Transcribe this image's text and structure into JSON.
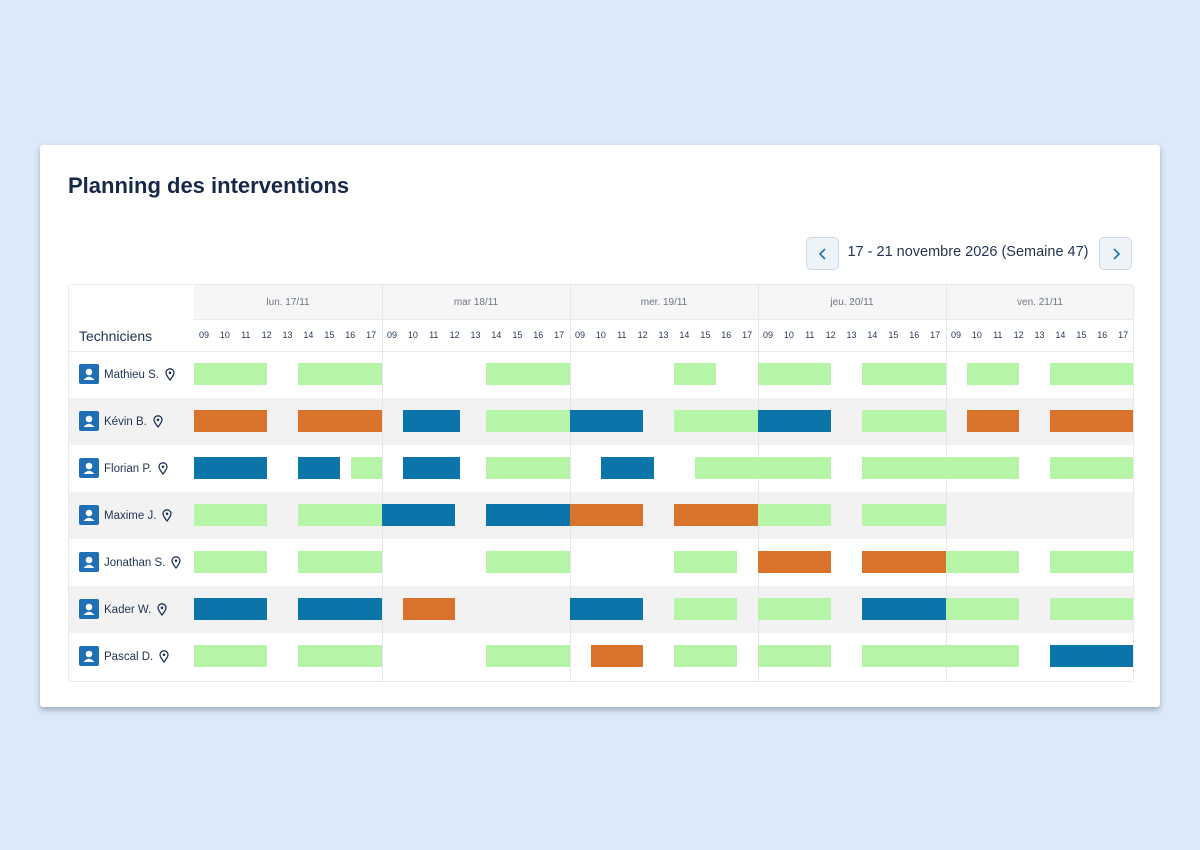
{
  "header": {
    "title": "Planning des interventions",
    "week": "17 - 21 novembre 2026 (Semaine 47)"
  },
  "table": {
    "column_title": "Techniciens",
    "days": [
      "lun. 17/11",
      "mar 18/11",
      "mer. 19/11",
      "jeu. 20/11",
      "ven. 21/11"
    ],
    "hours": [
      "09",
      "10",
      "11",
      "12",
      "13",
      "14",
      "15",
      "16",
      "17"
    ],
    "technicians": [
      {
        "name": "Mathieu S.",
        "bookings": [
          {
            "day": 0,
            "start": 9,
            "end": 12.5,
            "color": "#b6f5a8"
          },
          {
            "day": 0,
            "start": 14,
            "end": 18,
            "color": "#b6f5a8"
          },
          {
            "day": 1,
            "start": 14,
            "end": 18,
            "color": "#b6f5a8"
          },
          {
            "day": 2,
            "start": 14,
            "end": 16,
            "color": "#b6f5a8"
          },
          {
            "day": 3,
            "start": 9,
            "end": 12.5,
            "color": "#b6f5a8"
          },
          {
            "day": 3,
            "start": 14,
            "end": 18,
            "color": "#b6f5a8"
          },
          {
            "day": 4,
            "start": 10,
            "end": 12.5,
            "color": "#b6f5a8"
          },
          {
            "day": 4,
            "start": 14,
            "end": 18,
            "color": "#b6f5a8"
          }
        ]
      },
      {
        "name": "Kévin B.",
        "bookings": [
          {
            "day": 0,
            "start": 9,
            "end": 12.5,
            "color": "#d9732b"
          },
          {
            "day": 0,
            "start": 14,
            "end": 18,
            "color": "#d9732b"
          },
          {
            "day": 1,
            "start": 10,
            "end": 12.75,
            "color": "#0b74a8"
          },
          {
            "day": 1,
            "start": 14,
            "end": 18,
            "color": "#b6f5a8"
          },
          {
            "day": 2,
            "start": 9,
            "end": 12.5,
            "color": "#0b74a8"
          },
          {
            "day": 2,
            "start": 14,
            "end": 18,
            "color": "#b6f5a8"
          },
          {
            "day": 3,
            "start": 9,
            "end": 12.5,
            "color": "#0b74a8"
          },
          {
            "day": 3,
            "start": 14,
            "end": 18,
            "color": "#b6f5a8"
          },
          {
            "day": 4,
            "start": 10,
            "end": 12.5,
            "color": "#d9732b"
          },
          {
            "day": 4,
            "start": 14,
            "end": 18,
            "color": "#d9732b"
          }
        ]
      },
      {
        "name": "Florian P.",
        "bookings": [
          {
            "day": 0,
            "start": 9,
            "end": 12.5,
            "color": "#0b74a8"
          },
          {
            "day": 0,
            "start": 14,
            "end": 16,
            "color": "#0b74a8"
          },
          {
            "day": 0,
            "start": 16.5,
            "end": 18,
            "color": "#b6f5a8"
          },
          {
            "day": 1,
            "start": 10,
            "end": 12.75,
            "color": "#0b74a8"
          },
          {
            "day": 1,
            "start": 14,
            "end": 18,
            "color": "#b6f5a8"
          },
          {
            "day": 2,
            "start": 10.5,
            "end": 13,
            "color": "#0b74a8"
          },
          {
            "day": 2,
            "start": 15,
            "end": 18,
            "color": "#b6f5a8"
          },
          {
            "day": 3,
            "start": 9,
            "end": 12.5,
            "color": "#b6f5a8"
          },
          {
            "day": 3,
            "start": 14,
            "end": 18,
            "color": "#b6f5a8"
          },
          {
            "day": 4,
            "start": 9,
            "end": 12.5,
            "color": "#b6f5a8"
          },
          {
            "day": 4,
            "start": 14,
            "end": 18,
            "color": "#b6f5a8"
          }
        ]
      },
      {
        "name": "Maxime J.",
        "bookings": [
          {
            "day": 0,
            "start": 9,
            "end": 12.5,
            "color": "#b6f5a8"
          },
          {
            "day": 0,
            "start": 14,
            "end": 18,
            "color": "#b6f5a8"
          },
          {
            "day": 1,
            "start": 9,
            "end": 12.5,
            "color": "#0b74a8"
          },
          {
            "day": 1,
            "start": 14,
            "end": 18,
            "color": "#0b74a8"
          },
          {
            "day": 2,
            "start": 9,
            "end": 12.5,
            "color": "#d9732b"
          },
          {
            "day": 2,
            "start": 14,
            "end": 18,
            "color": "#d9732b"
          },
          {
            "day": 3,
            "start": 9,
            "end": 12.5,
            "color": "#b6f5a8"
          },
          {
            "day": 3,
            "start": 14,
            "end": 18,
            "color": "#b6f5a8"
          }
        ]
      },
      {
        "name": "Jonathan S.",
        "bookings": [
          {
            "day": 0,
            "start": 9,
            "end": 12.5,
            "color": "#b6f5a8"
          },
          {
            "day": 0,
            "start": 14,
            "end": 18,
            "color": "#b6f5a8"
          },
          {
            "day": 1,
            "start": 14,
            "end": 18,
            "color": "#b6f5a8"
          },
          {
            "day": 2,
            "start": 14,
            "end": 17,
            "color": "#b6f5a8"
          },
          {
            "day": 3,
            "start": 9,
            "end": 12.5,
            "color": "#d9732b"
          },
          {
            "day": 3,
            "start": 14,
            "end": 18,
            "color": "#d9732b"
          },
          {
            "day": 4,
            "start": 9,
            "end": 12.5,
            "color": "#b6f5a8"
          },
          {
            "day": 4,
            "start": 14,
            "end": 18,
            "color": "#b6f5a8"
          }
        ]
      },
      {
        "name": "Kader W.",
        "bookings": [
          {
            "day": 0,
            "start": 9,
            "end": 12.5,
            "color": "#0b74a8"
          },
          {
            "day": 0,
            "start": 14,
            "end": 18,
            "color": "#0b74a8"
          },
          {
            "day": 1,
            "start": 10,
            "end": 12.5,
            "color": "#d9732b"
          },
          {
            "day": 2,
            "start": 9,
            "end": 12.5,
            "color": "#0b74a8"
          },
          {
            "day": 2,
            "start": 14,
            "end": 17,
            "color": "#b6f5a8"
          },
          {
            "day": 3,
            "start": 9,
            "end": 12.5,
            "color": "#b6f5a8"
          },
          {
            "day": 3,
            "start": 14,
            "end": 18,
            "color": "#0b74a8"
          },
          {
            "day": 4,
            "start": 9,
            "end": 12.5,
            "color": "#b6f5a8"
          },
          {
            "day": 4,
            "start": 14,
            "end": 18,
            "color": "#b6f5a8"
          }
        ]
      },
      {
        "name": "Pascal D.",
        "bookings": [
          {
            "day": 0,
            "start": 9,
            "end": 12.5,
            "color": "#b6f5a8"
          },
          {
            "day": 0,
            "start": 14,
            "end": 18,
            "color": "#b6f5a8"
          },
          {
            "day": 1,
            "start": 14,
            "end": 18,
            "color": "#b6f5a8"
          },
          {
            "day": 2,
            "start": 10,
            "end": 12.5,
            "color": "#d9732b"
          },
          {
            "day": 2,
            "start": 14,
            "end": 17,
            "color": "#b6f5a8"
          },
          {
            "day": 3,
            "start": 9,
            "end": 12.5,
            "color": "#b6f5a8"
          },
          {
            "day": 3,
            "start": 14,
            "end": 18,
            "color": "#b6f5a8"
          },
          {
            "day": 4,
            "start": 9,
            "end": 12.5,
            "color": "#b6f5a8"
          },
          {
            "day": 4,
            "start": 14,
            "end": 18,
            "color": "#0b74a8"
          }
        ]
      }
    ]
  }
}
